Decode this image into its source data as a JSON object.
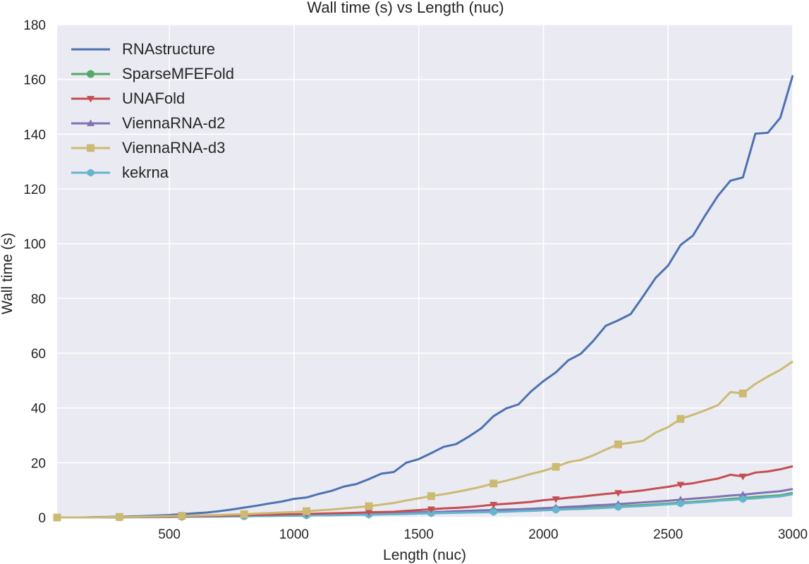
{
  "chart_data": {
    "type": "line",
    "title": "Wall time (s) vs Length (nuc)",
    "xlabel": "Length (nuc)",
    "ylabel": "Wall time (s)",
    "xlim": [
      50,
      3000
    ],
    "ylim": [
      0,
      180
    ],
    "xticks": [
      500,
      1000,
      1500,
      2000,
      2500,
      3000
    ],
    "yticks": [
      0,
      20,
      40,
      60,
      80,
      100,
      120,
      140,
      160,
      180
    ],
    "grid": true,
    "legend_position": "top-left",
    "x": [
      50,
      100,
      150,
      200,
      250,
      300,
      350,
      400,
      450,
      500,
      550,
      600,
      650,
      700,
      750,
      800,
      850,
      900,
      950,
      1000,
      1050,
      1100,
      1150,
      1200,
      1250,
      1300,
      1350,
      1400,
      1450,
      1500,
      1550,
      1600,
      1650,
      1700,
      1750,
      1800,
      1850,
      1900,
      1950,
      2000,
      2050,
      2100,
      2150,
      2200,
      2250,
      2300,
      2350,
      2400,
      2450,
      2500,
      2550,
      2600,
      2650,
      2700,
      2750,
      2800,
      2850,
      2900,
      2950,
      3000
    ],
    "series": [
      {
        "name": "RNAstructure",
        "color": "#4c72b0",
        "marker": "none",
        "values": [
          0,
          0,
          0,
          0.1,
          0.2,
          0.3,
          0.4,
          0.5,
          0.7,
          0.9,
          1.2,
          1.5,
          1.8,
          2.3,
          2.9,
          3.6,
          4.3,
          5.1,
          5.8,
          6.8,
          7.3,
          8.6,
          9.7,
          11.3,
          12.2,
          14.0,
          16.0,
          16.6,
          20.0,
          21.3,
          23.5,
          25.8,
          26.8,
          29.5,
          32.5,
          37.0,
          39.8,
          41.3,
          46.0,
          49.8,
          53.0,
          57.4,
          59.8,
          64.5,
          70.0,
          72.0,
          74.3,
          80.8,
          87.5,
          92.0,
          99.5,
          103.0,
          110.5,
          117.5,
          123.0,
          124.2,
          140.2,
          140.5,
          146.0,
          161.5
        ]
      },
      {
        "name": "SparseMFEFold",
        "color": "#55a868",
        "marker": "circle",
        "values": [
          0,
          0,
          0,
          0,
          0,
          0.1,
          0.1,
          0.1,
          0.2,
          0.2,
          0.3,
          0.3,
          0.4,
          0.4,
          0.5,
          0.5,
          0.6,
          0.6,
          0.7,
          0.8,
          0.9,
          0.9,
          1.0,
          1.1,
          1.2,
          1.2,
          1.3,
          1.4,
          1.5,
          1.6,
          1.7,
          1.8,
          1.9,
          2.0,
          2.1,
          2.3,
          2.4,
          2.5,
          2.7,
          2.9,
          3.0,
          3.2,
          3.4,
          3.6,
          3.8,
          4.1,
          4.3,
          4.5,
          4.8,
          5.1,
          5.4,
          5.7,
          6.0,
          6.4,
          6.8,
          7.1,
          7.5,
          7.8,
          8.1,
          9.0
        ]
      },
      {
        "name": "UNAFold",
        "color": "#c44e52",
        "marker": "triangle-down",
        "values": [
          0,
          0,
          0,
          0,
          0.1,
          0.1,
          0.2,
          0.2,
          0.3,
          0.3,
          0.4,
          0.5,
          0.5,
          0.6,
          0.7,
          0.8,
          0.9,
          1.0,
          1.1,
          1.2,
          1.3,
          1.4,
          1.5,
          1.6,
          1.7,
          1.9,
          2.0,
          2.1,
          2.4,
          2.7,
          3.0,
          3.3,
          3.5,
          3.8,
          4.2,
          4.7,
          5.0,
          5.3,
          5.7,
          6.3,
          6.7,
          7.2,
          7.6,
          8.1,
          8.6,
          9.0,
          9.4,
          9.9,
          10.6,
          11.2,
          12.0,
          12.5,
          13.4,
          14.2,
          15.6,
          15.0,
          16.4,
          16.8,
          17.6,
          18.7
        ]
      },
      {
        "name": "ViennaRNA-d2",
        "color": "#8172b2",
        "marker": "triangle-up",
        "values": [
          0,
          0,
          0,
          0,
          0.1,
          0.1,
          0.1,
          0.2,
          0.2,
          0.3,
          0.3,
          0.4,
          0.4,
          0.5,
          0.5,
          0.6,
          0.7,
          0.7,
          0.8,
          0.9,
          1.0,
          1.1,
          1.2,
          1.3,
          1.4,
          1.5,
          1.6,
          1.7,
          1.8,
          1.9,
          2.0,
          2.1,
          2.3,
          2.4,
          2.6,
          2.7,
          2.9,
          3.0,
          3.2,
          3.4,
          3.6,
          3.9,
          4.1,
          4.4,
          4.6,
          4.9,
          5.2,
          5.5,
          5.8,
          6.1,
          6.5,
          6.9,
          7.2,
          7.6,
          8.0,
          8.3,
          8.8,
          9.2,
          9.6,
          10.4
        ]
      },
      {
        "name": "ViennaRNA-d3",
        "color": "#ccb974",
        "marker": "square",
        "values": [
          0,
          0,
          0,
          0,
          0.1,
          0.2,
          0.2,
          0.3,
          0.4,
          0.5,
          0.6,
          0.7,
          0.8,
          0.9,
          1.1,
          1.2,
          1.4,
          1.6,
          1.8,
          2.0,
          2.3,
          2.6,
          2.9,
          3.3,
          3.7,
          4.1,
          4.7,
          5.3,
          6.2,
          7.0,
          7.8,
          8.5,
          9.3,
          10.2,
          11.2,
          12.4,
          13.4,
          14.6,
          15.9,
          17.0,
          18.5,
          20.2,
          21.0,
          22.7,
          24.8,
          26.7,
          27.3,
          28.0,
          31.0,
          33.0,
          36.0,
          37.5,
          39.2,
          41.0,
          45.8,
          45.3,
          48.8,
          51.5,
          53.9,
          57.0
        ]
      },
      {
        "name": "kekrna",
        "color": "#64b5cd",
        "marker": "hexagon",
        "values": [
          0,
          0,
          0,
          0,
          0,
          0.1,
          0.1,
          0.1,
          0.1,
          0.2,
          0.2,
          0.3,
          0.3,
          0.3,
          0.4,
          0.4,
          0.5,
          0.5,
          0.6,
          0.6,
          0.7,
          0.8,
          0.8,
          0.9,
          1.0,
          1.0,
          1.1,
          1.2,
          1.3,
          1.4,
          1.5,
          1.6,
          1.7,
          1.8,
          1.9,
          2.0,
          2.1,
          2.3,
          2.4,
          2.6,
          2.8,
          3.0,
          3.1,
          3.3,
          3.5,
          3.8,
          4.0,
          4.2,
          4.5,
          4.8,
          5.1,
          5.4,
          5.7,
          6.1,
          6.4,
          6.7,
          7.0,
          7.4,
          7.7,
          8.5
        ]
      }
    ]
  }
}
